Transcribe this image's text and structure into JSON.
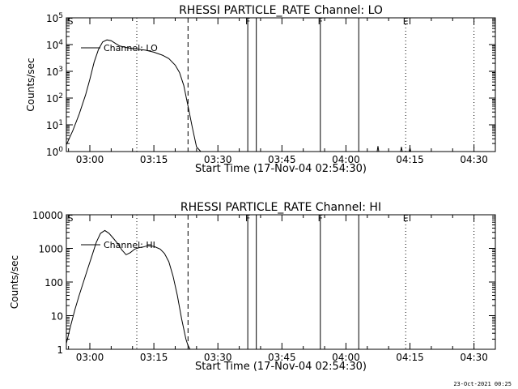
{
  "footer_timestamp": "23-Oct-2021 00:25",
  "chart_data": [
    {
      "type": "line",
      "title": "RHESSI PARTICLE_RATE Channel: LO",
      "xlabel": "Start Time (17-Nov-04 02:54:30)",
      "ylabel": "Counts/sec",
      "yscale": "log",
      "ylim": [
        1,
        100000
      ],
      "y_ticks": [
        1,
        10,
        100,
        1000,
        10000,
        100000
      ],
      "y_tick_labels": [
        "10^0",
        "10^1",
        "10^2",
        "10^3",
        "10^4",
        "10^5"
      ],
      "x_range": [
        "02:54:30",
        "04:35:00"
      ],
      "x_ticks": [
        "03:00",
        "03:15",
        "03:30",
        "03:45",
        "04:00",
        "04:15",
        "04:30"
      ],
      "legend": "Channel: LO",
      "legend_position": "top-left",
      "grid": false,
      "series": [
        {
          "x": [
            "02:54:30",
            "02:56:00",
            "02:57:30",
            "02:59:00",
            "03:00:00",
            "03:01:00",
            "03:02:00",
            "03:03:00",
            "03:04:00",
            "03:05:00",
            "03:06:00",
            "03:07:00",
            "03:09:00",
            "03:11:00",
            "03:13:00",
            "03:15:00",
            "03:17:00",
            "03:18:30",
            "03:20:00",
            "03:21:00",
            "03:22:00",
            "03:23:00",
            "03:24:00",
            "03:25:00",
            "03:26:00"
          ],
          "values": [
            1.8,
            6,
            25,
            130,
            500,
            2200,
            6500,
            12500,
            15000,
            14000,
            11000,
            8800,
            7500,
            6800,
            6200,
            5200,
            4000,
            3000,
            1700,
            900,
            300,
            50,
            8,
            1.5,
            1
          ]
        }
      ],
      "vertical_lines": [
        {
          "time": "03:11:00",
          "style": "dotted",
          "label": ""
        },
        {
          "time": "03:23:00",
          "style": "dashed",
          "label": ""
        },
        {
          "time": "03:37:00",
          "style": "solid",
          "label": "F"
        },
        {
          "time": "03:39:00",
          "style": "solid",
          "label": ""
        },
        {
          "time": "03:54:00",
          "style": "solid",
          "label": "F"
        },
        {
          "time": "04:03:00",
          "style": "solid",
          "label": ""
        },
        {
          "time": "04:14:00",
          "style": "dotted",
          "label": "E"
        },
        {
          "time": "04:30:00",
          "style": "dotted",
          "label": ""
        }
      ],
      "flag_labels": [
        {
          "time": "02:54:30",
          "label": "S"
        }
      ],
      "spikes": [
        {
          "time": "04:07:30",
          "value": 1.6
        },
        {
          "time": "04:13:00",
          "value": 1.5
        },
        {
          "time": "04:15:00",
          "value": 1.4
        }
      ]
    },
    {
      "type": "line",
      "title": "RHESSI PARTICLE_RATE Channel: HI",
      "xlabel": "Start Time (17-Nov-04 02:54:30)",
      "ylabel": "Counts/sec",
      "yscale": "log",
      "ylim": [
        1,
        10000
      ],
      "y_ticks": [
        1,
        10,
        100,
        1000,
        10000
      ],
      "y_tick_labels": [
        "1",
        "10",
        "100",
        "1000",
        "10000"
      ],
      "x_range": [
        "02:54:30",
        "04:35:00"
      ],
      "x_ticks": [
        "03:00",
        "03:15",
        "03:30",
        "03:45",
        "04:00",
        "04:15",
        "04:30"
      ],
      "legend": "Channel: HI",
      "legend_position": "top-left",
      "grid": false,
      "series": [
        {
          "x": [
            "02:54:30",
            "02:55:30",
            "02:56:30",
            "02:57:30",
            "02:58:30",
            "02:59:30",
            "03:00:30",
            "03:01:30",
            "03:02:30",
            "03:03:30",
            "03:04:30",
            "03:05:30",
            "03:06:30",
            "03:07:30",
            "03:08:30",
            "03:09:30",
            "03:10:30",
            "03:11:30",
            "03:12:30",
            "03:13:30",
            "03:15:00",
            "03:16:30",
            "03:17:30",
            "03:18:30",
            "03:19:30",
            "03:20:30",
            "03:21:30",
            "03:22:30",
            "03:23:00",
            "03:23:30"
          ],
          "values": [
            1.5,
            5,
            15,
            40,
            100,
            250,
            600,
            1500,
            2800,
            3400,
            2800,
            2000,
            1400,
            900,
            650,
            750,
            950,
            1050,
            1100,
            1200,
            1150,
            950,
            700,
            400,
            150,
            40,
            8,
            2,
            1.3,
            1
          ]
        }
      ],
      "vertical_lines": [
        {
          "time": "03:11:00",
          "style": "dotted",
          "label": ""
        },
        {
          "time": "03:23:00",
          "style": "dashed",
          "label": ""
        },
        {
          "time": "03:37:00",
          "style": "solid",
          "label": "F"
        },
        {
          "time": "03:39:00",
          "style": "solid",
          "label": ""
        },
        {
          "time": "03:54:00",
          "style": "solid",
          "label": "F"
        },
        {
          "time": "04:03:00",
          "style": "solid",
          "label": ""
        },
        {
          "time": "04:14:00",
          "style": "dotted",
          "label": "E"
        },
        {
          "time": "04:30:00",
          "style": "dotted",
          "label": ""
        }
      ],
      "flag_labels": [
        {
          "time": "02:54:30",
          "label": "S"
        }
      ],
      "spikes": []
    }
  ]
}
